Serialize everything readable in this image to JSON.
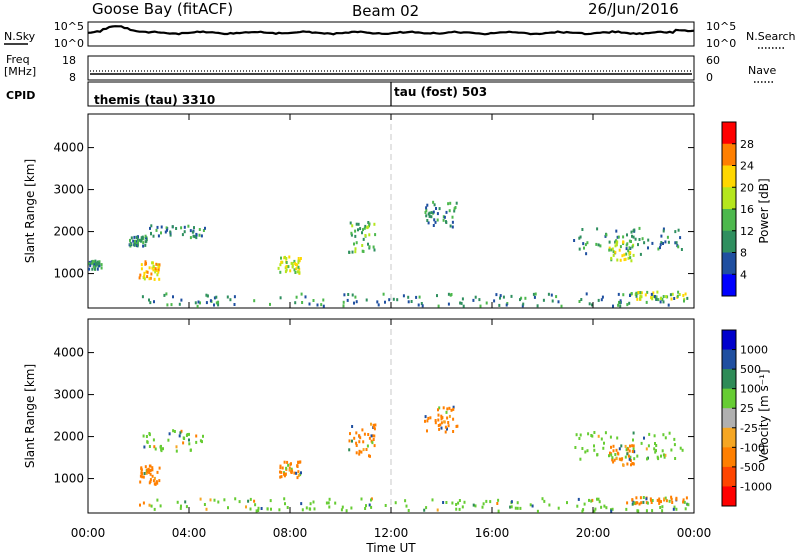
{
  "header": {
    "station": "Goose Bay (fitACF)",
    "beam": "Beam 02",
    "date": "26/Jun/2016"
  },
  "noise_panel": {
    "left_label": "N.Sky",
    "left_ticks": [
      "10^5",
      "10^0"
    ],
    "right_label": "N.Search",
    "right_ticks": [
      "10^5",
      "10^0"
    ]
  },
  "freq_panel": {
    "left_label_1": "Freq",
    "left_label_2": "[MHz]",
    "left_ticks": [
      "18",
      "8"
    ],
    "right_label": "Nave",
    "right_ticks": [
      "60",
      "0"
    ]
  },
  "cpid_panel": {
    "label": "CPID",
    "segments": [
      {
        "text": "themis (tau) 3310",
        "start_hour": 0
      },
      {
        "text": "tau (fost) 503",
        "start_hour": 12
      }
    ]
  },
  "power_colorbar": {
    "label": "Power [dB]",
    "ticks": [
      "28",
      "24",
      "20",
      "16",
      "12",
      "8",
      "4"
    ],
    "colors": [
      "#ff0000",
      "#ff7f00",
      "#ffd700",
      "#b5e61d",
      "#4db84d",
      "#2f8f5f",
      "#1f4fa0",
      "#0000ff"
    ]
  },
  "velocity_colorbar": {
    "label": "Velocity [m s⁻¹]",
    "ticks": [
      "1000",
      "500",
      "100",
      "25",
      "-25",
      "-100",
      "-500",
      "-1000"
    ],
    "colors": [
      "#0000cc",
      "#1f4fa0",
      "#2e8b57",
      "#66cc33",
      "#b0b0b0",
      "#f5a623",
      "#ff7f00",
      "#ff4500",
      "#ff0000"
    ]
  },
  "chart_data": {
    "type": "heatmap",
    "xlabel": "Time UT",
    "ylabel": "Slant Range [km]",
    "x_ticks": [
      "00:00",
      "04:00",
      "08:00",
      "12:00",
      "16:00",
      "20:00",
      "00:00"
    ],
    "y_ticks": [
      "1000",
      "2000",
      "3000",
      "4000"
    ],
    "xlim": [
      0,
      24
    ],
    "ylim": [
      180,
      4800
    ],
    "power_clusters": [
      {
        "t0": 2.0,
        "t1": 2.8,
        "r0": 850,
        "r1": 1300,
        "power_db": 20
      },
      {
        "t0": 1.6,
        "t1": 2.3,
        "r0": 1650,
        "r1": 1900,
        "power_db": 8
      },
      {
        "t0": 2.4,
        "t1": 4.6,
        "r0": 1850,
        "r1": 2150,
        "power_db": 8
      },
      {
        "t0": 7.5,
        "t1": 8.4,
        "r0": 1000,
        "r1": 1400,
        "power_db": 16
      },
      {
        "t0": 10.3,
        "t1": 11.4,
        "r0": 1500,
        "r1": 2300,
        "power_db": 12
      },
      {
        "t0": 13.3,
        "t1": 14.6,
        "r0": 2100,
        "r1": 2700,
        "power_db": 8
      },
      {
        "t0": 19.2,
        "t1": 23.6,
        "r0": 1450,
        "r1": 2100,
        "power_db": 8
      },
      {
        "t0": 20.6,
        "t1": 21.6,
        "r0": 1300,
        "r1": 1800,
        "power_db": 16
      },
      {
        "t0": 21.4,
        "t1": 23.7,
        "r0": 380,
        "r1": 560,
        "power_db": 16
      },
      {
        "t0": 0.0,
        "t1": 0.5,
        "r0": 1100,
        "r1": 1300,
        "power_db": 8
      },
      {
        "t0": 2.0,
        "t1": 23.8,
        "r0": 220,
        "r1": 520,
        "power_db": 8
      }
    ],
    "velocity_clusters": [
      {
        "t0": 2.0,
        "t1": 2.8,
        "r0": 850,
        "r1": 1300,
        "velocity": -100
      },
      {
        "t0": 2.0,
        "t1": 4.6,
        "r0": 1650,
        "r1": 2150,
        "velocity": 25
      },
      {
        "t0": 7.5,
        "t1": 8.4,
        "r0": 1000,
        "r1": 1400,
        "velocity": -100
      },
      {
        "t0": 10.3,
        "t1": 11.4,
        "r0": 1500,
        "r1": 2300,
        "velocity": -100
      },
      {
        "t0": 13.3,
        "t1": 14.6,
        "r0": 2100,
        "r1": 2700,
        "velocity": -100
      },
      {
        "t0": 19.2,
        "t1": 23.6,
        "r0": 1450,
        "r1": 2100,
        "velocity": 25
      },
      {
        "t0": 20.6,
        "t1": 21.6,
        "r0": 1300,
        "r1": 1800,
        "velocity": -100
      },
      {
        "t0": 21.4,
        "t1": 23.7,
        "r0": 380,
        "r1": 560,
        "velocity": -100
      },
      {
        "t0": 2.0,
        "t1": 23.8,
        "r0": 220,
        "r1": 520,
        "velocity": 25
      }
    ]
  }
}
